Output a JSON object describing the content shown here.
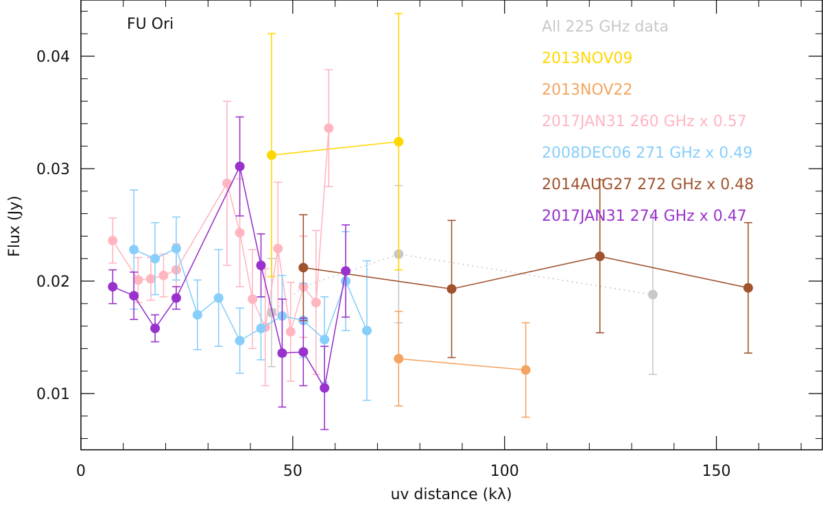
{
  "chart_data": {
    "type": "scatter",
    "title": "",
    "annotation": "FU Ori",
    "xlabel": "uv distance (kλ)",
    "ylabel": "Flux (Jy)",
    "xlim": [
      0,
      175
    ],
    "ylim": [
      0.005,
      0.045
    ],
    "x_ticks": [
      0,
      50,
      100,
      150
    ],
    "x_tick_labels": [
      "0",
      "50",
      "100",
      "150"
    ],
    "y_ticks": [
      0.01,
      0.02,
      0.03,
      0.04
    ],
    "y_tick_labels": [
      "0.01",
      "0.02",
      "0.03",
      "0.04"
    ],
    "legend_position": "top-right",
    "series": [
      {
        "name": "All 225 GHz data",
        "color": "#c8c8c8",
        "line": "dotted",
        "points": [
          {
            "x": 45,
            "y": 0.0172,
            "err": 0.0048
          },
          {
            "x": 52.5,
            "y": 0.0195,
            "err": 0.0045
          },
          {
            "x": 75,
            "y": 0.0224,
            "err": 0.0061
          },
          {
            "x": 135,
            "y": 0.0188,
            "err": 0.0071
          }
        ]
      },
      {
        "name": "2013NOV09",
        "color": "#ffd700",
        "line": "solid",
        "points": [
          {
            "x": 45,
            "y": 0.0312,
            "err": 0.0108
          },
          {
            "x": 75,
            "y": 0.0324,
            "err": 0.0114
          }
        ]
      },
      {
        "name": "2013NOV22",
        "color": "#f4a460",
        "line": "solid",
        "points": [
          {
            "x": 75,
            "y": 0.0131,
            "err": 0.0042
          },
          {
            "x": 105,
            "y": 0.0121,
            "err": 0.0042
          }
        ]
      },
      {
        "name": "2017JAN31 260 GHz x 0.57",
        "color": "#ffb6c1",
        "line": "solid",
        "points": [
          {
            "x": 7.5,
            "y": 0.0236,
            "err": 0.002
          },
          {
            "x": 13.5,
            "y": 0.0201,
            "err": 0.002
          },
          {
            "x": 16.5,
            "y": 0.0202,
            "err": 0.0019
          },
          {
            "x": 19.5,
            "y": 0.0205,
            "err": 0.0019
          },
          {
            "x": 22.5,
            "y": 0.021,
            "err": 0.0023
          },
          {
            "x": 34.5,
            "y": 0.0287,
            "err": 0.0073
          },
          {
            "x": 37.5,
            "y": 0.0243,
            "err": 0.0048
          },
          {
            "x": 40.5,
            "y": 0.0184,
            "err": 0.0044
          },
          {
            "x": 43.5,
            "y": 0.0159,
            "err": 0.0052
          },
          {
            "x": 46.5,
            "y": 0.0229,
            "err": 0.0059
          },
          {
            "x": 49.5,
            "y": 0.0155,
            "err": 0.0044
          },
          {
            "x": 52.5,
            "y": 0.0195,
            "err": 0.0045
          },
          {
            "x": 55.5,
            "y": 0.0181,
            "err": 0.0064
          },
          {
            "x": 58.5,
            "y": 0.0336,
            "err": 0.0052
          }
        ]
      },
      {
        "name": "2008DEC06 271 GHz x 0.49",
        "color": "#87cefa",
        "line": "solid",
        "points": [
          {
            "x": 12.5,
            "y": 0.0228,
            "err": 0.0053
          },
          {
            "x": 17.5,
            "y": 0.022,
            "err": 0.0032
          },
          {
            "x": 22.5,
            "y": 0.0229,
            "err": 0.0028
          },
          {
            "x": 27.5,
            "y": 0.017,
            "err": 0.0031
          },
          {
            "x": 32.5,
            "y": 0.0185,
            "err": 0.0043
          },
          {
            "x": 37.5,
            "y": 0.0147,
            "err": 0.0029
          },
          {
            "x": 42.5,
            "y": 0.0158,
            "err": 0.0028
          },
          {
            "x": 47.5,
            "y": 0.0169,
            "err": 0.0036
          },
          {
            "x": 52.5,
            "y": 0.0165,
            "err": 0.0033
          },
          {
            "x": 57.5,
            "y": 0.0148,
            "err": 0.0038
          },
          {
            "x": 62.5,
            "y": 0.02,
            "err": 0.0044
          },
          {
            "x": 67.5,
            "y": 0.0156,
            "err": 0.0062
          }
        ]
      },
      {
        "name": "2014AUG27 272 GHz x 0.48",
        "color": "#a0522d",
        "line": "solid",
        "points": [
          {
            "x": 52.5,
            "y": 0.0212,
            "err": 0.0047
          },
          {
            "x": 87.5,
            "y": 0.0193,
            "err": 0.0061
          },
          {
            "x": 122.5,
            "y": 0.0222,
            "err": 0.0068
          },
          {
            "x": 157.5,
            "y": 0.0194,
            "err": 0.0058
          }
        ]
      },
      {
        "name": "2017JAN31 274 GHz x 0.47",
        "color": "#9932cc",
        "line": "solid",
        "points": [
          {
            "x": 7.5,
            "y": 0.0195,
            "err": 0.0015
          },
          {
            "x": 12.5,
            "y": 0.0187,
            "err": 0.0021
          },
          {
            "x": 17.5,
            "y": 0.0158,
            "err": 0.0012
          },
          {
            "x": 22.5,
            "y": 0.0185,
            "err": 0.001
          },
          {
            "x": 37.5,
            "y": 0.0302,
            "err": 0.0044
          },
          {
            "x": 42.5,
            "y": 0.0214,
            "err": 0.0028
          },
          {
            "x": 47.5,
            "y": 0.0136,
            "err": 0.0048
          },
          {
            "x": 52.5,
            "y": 0.0137,
            "err": 0.003
          },
          {
            "x": 57.5,
            "y": 0.0105,
            "err": 0.0037
          },
          {
            "x": 62.5,
            "y": 0.0209,
            "err": 0.0041
          }
        ]
      }
    ]
  }
}
